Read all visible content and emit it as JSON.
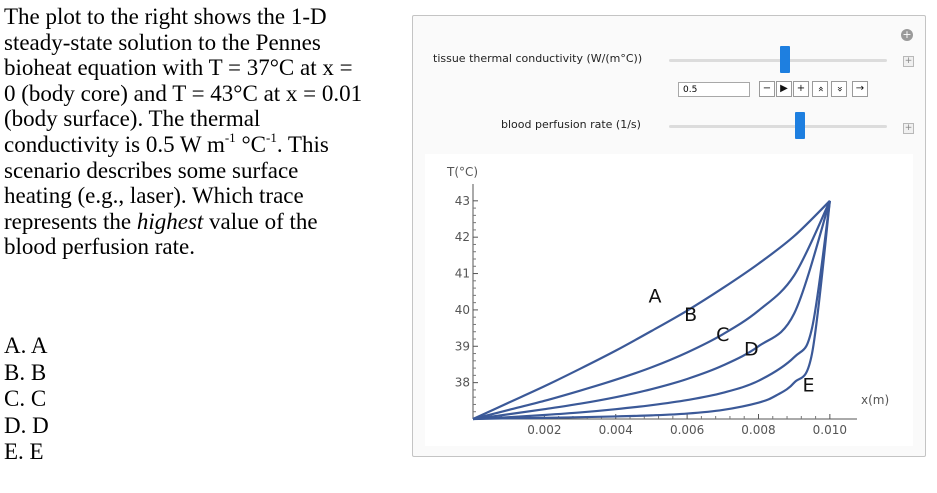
{
  "question": {
    "lines": [
      "The plot to the right shows the 1-D",
      "steady-state solution to the Pennes",
      "bioheat equation with T = 37°C at x =",
      "0 (body core) and T = 43°C at x = 0.01",
      "(body surface). The thermal",
      "conductivity is 0.5 W m",
      "-1",
      " °C",
      "-1",
      ". This",
      "scenario describes some surface",
      "heating (e.g., laser). Which trace",
      "represents the ",
      "highest",
      " value of the",
      "blood perfusion rate."
    ],
    "options": [
      "A. A",
      "B. B",
      "C. C",
      "D. D",
      "E. E"
    ]
  },
  "controls": {
    "conductivity_label": "tissue thermal conductivity (W/(m°C))",
    "conductivity_value": "0.5",
    "conductivity_level": 0.53,
    "perfusion_label": "blood perfusion rate (1/s)",
    "perfusion_level": 0.6,
    "plus_glyph": "+",
    "gear_glyph": "+",
    "buttons": [
      {
        "name": "minus-button",
        "glyph": "−"
      },
      {
        "name": "play-button",
        "glyph": "▶"
      },
      {
        "name": "plus-button",
        "glyph": "+"
      },
      {
        "name": "faster-button",
        "glyph": "«"
      },
      {
        "name": "slower-button",
        "glyph": "»"
      },
      {
        "name": "direction-button",
        "glyph": "→"
      }
    ]
  },
  "chart_data": {
    "type": "line",
    "title": "",
    "ylabel": "T(°C)",
    "xlabel": "x(m)",
    "xlim": [
      0,
      0.0102
    ],
    "ylim": [
      37,
      43.05
    ],
    "x_ticks": [
      0.002,
      0.004,
      0.006,
      0.008,
      0.01
    ],
    "x_tick_labels": [
      "0.002",
      "0.004",
      "0.006",
      "0.008",
      "0.010"
    ],
    "y_ticks": [
      38,
      39,
      40,
      41,
      42,
      43
    ],
    "y_tick_labels": [
      "38",
      "39",
      "40",
      "41",
      "42",
      "43"
    ],
    "line_color": "#3b5998",
    "series": [
      {
        "name": "A",
        "x": [
          0,
          0.001,
          0.002,
          0.003,
          0.004,
          0.005,
          0.006,
          0.007,
          0.008,
          0.009,
          0.01
        ],
        "y": [
          37,
          37.45,
          37.9,
          38.38,
          38.88,
          39.42,
          39.98,
          40.6,
          41.27,
          42.03,
          43
        ]
      },
      {
        "name": "B",
        "x": [
          0,
          0.001,
          0.002,
          0.003,
          0.004,
          0.005,
          0.006,
          0.007,
          0.008,
          0.009,
          0.01
        ],
        "y": [
          37,
          37.25,
          37.5,
          37.78,
          38.08,
          38.42,
          38.83,
          39.33,
          39.98,
          40.95,
          43
        ]
      },
      {
        "name": "C",
        "x": [
          0,
          0.001,
          0.002,
          0.003,
          0.004,
          0.005,
          0.006,
          0.007,
          0.008,
          0.009,
          0.01
        ],
        "y": [
          37,
          37.13,
          37.27,
          37.42,
          37.6,
          37.82,
          38.1,
          38.47,
          39.0,
          39.9,
          43
        ]
      },
      {
        "name": "D",
        "x": [
          0,
          0.001,
          0.002,
          0.003,
          0.004,
          0.005,
          0.006,
          0.007,
          0.008,
          0.009,
          0.0095,
          0.01
        ],
        "y": [
          37,
          37.05,
          37.11,
          37.18,
          37.27,
          37.38,
          37.52,
          37.72,
          38.05,
          38.7,
          39.5,
          43
        ]
      },
      {
        "name": "E",
        "x": [
          0,
          0.001,
          0.002,
          0.003,
          0.004,
          0.005,
          0.006,
          0.007,
          0.008,
          0.0085,
          0.009,
          0.0095,
          0.01
        ],
        "y": [
          37,
          37.02,
          37.03,
          37.05,
          37.07,
          37.1,
          37.15,
          37.25,
          37.45,
          37.65,
          38.0,
          38.8,
          43
        ]
      }
    ],
    "labels": [
      {
        "text": "A",
        "x": 0.0051,
        "y": 40.2
      },
      {
        "text": "B",
        "x": 0.0061,
        "y": 39.7
      },
      {
        "text": "C",
        "x": 0.007,
        "y": 39.15
      },
      {
        "text": "D",
        "x": 0.0078,
        "y": 38.75
      },
      {
        "text": "E",
        "x": 0.0094,
        "y": 37.75
      }
    ]
  }
}
